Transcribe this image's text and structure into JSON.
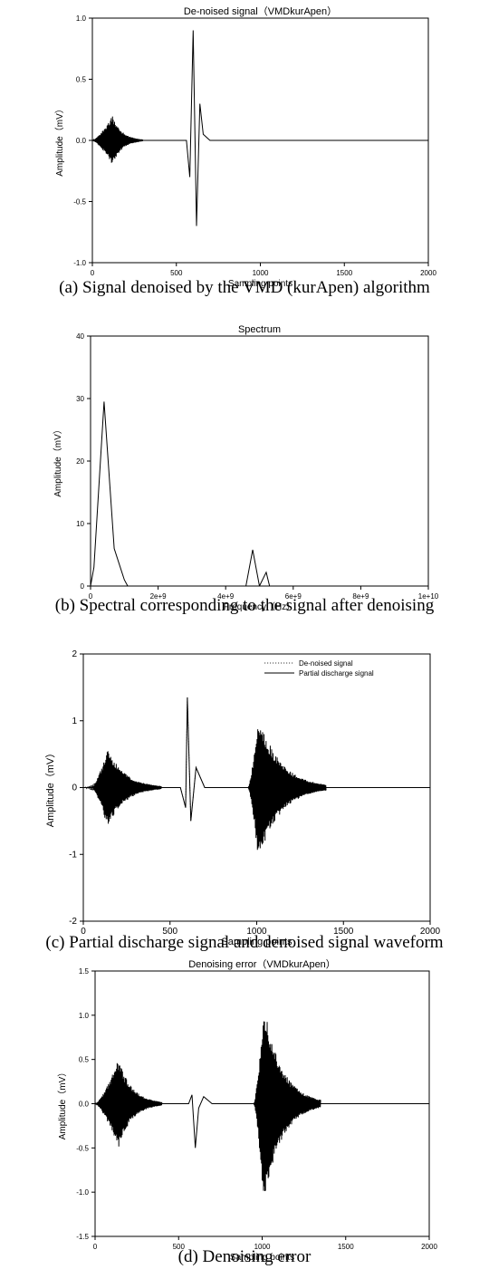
{
  "chart_data": [
    {
      "type": "line",
      "title": "De-noised signal（VMDkurApen）",
      "xlabel": "Sampling points",
      "ylabel": "Amplitude（mV）",
      "xlim": [
        0,
        2000
      ],
      "ylim": [
        -1.0,
        1.0
      ],
      "xticks": [
        "0",
        "500",
        "1000",
        "1500",
        "2000"
      ],
      "yticks": [
        "-1.0",
        "-0.5",
        "0.0",
        "0.5",
        "1.0"
      ],
      "grid": false,
      "series": [
        {
          "style": "solid",
          "x": [
            0,
            300,
            560,
            580,
            600,
            620,
            640,
            660,
            700,
            2000
          ],
          "y": [
            0.0,
            0.0,
            0.0,
            -0.3,
            0.9,
            -0.7,
            0.3,
            0.05,
            0.0,
            0.0
          ],
          "bursts": [
            {
              "x_start": 0,
              "x_end": 300,
              "peak": 0.2,
              "center": 120
            }
          ]
        }
      ]
    },
    {
      "type": "line",
      "title": "Spectrum",
      "xlabel": "Frequency（Hz）",
      "ylabel": "Amplitude（mV）",
      "xlim": [
        0,
        10000000000
      ],
      "ylim": [
        0,
        40
      ],
      "xticks": [
        "0",
        "2e+9",
        "4e+9",
        "6e+9",
        "8e+9",
        "1e+10"
      ],
      "yticks": [
        "0",
        "10",
        "20",
        "30",
        "40"
      ],
      "grid": false,
      "series": [
        {
          "style": "solid",
          "x": [
            0,
            100000000,
            400000000,
            700000000,
            1000000000,
            1100000000,
            4600000000,
            4800000000,
            5000000000,
            5200000000,
            5300000000,
            5400000000,
            10000000000
          ],
          "y": [
            0,
            3,
            29.5,
            6,
            1,
            0,
            0,
            5.8,
            0,
            2.2,
            0,
            0,
            0
          ]
        }
      ]
    },
    {
      "type": "line",
      "title": "",
      "xlabel": "Sampling points",
      "ylabel": "Amplitude（mV）",
      "xlim": [
        0,
        2000
      ],
      "ylim": [
        -2,
        2
      ],
      "xticks": [
        "0",
        "500",
        "1000",
        "1500",
        "2000"
      ],
      "yticks": [
        "-2",
        "-1",
        "0",
        "1",
        "2"
      ],
      "grid": false,
      "legend": "top-right",
      "series": [
        {
          "name": "De-noised signal",
          "style": "dotted",
          "x": [
            0,
            300,
            560,
            590,
            600,
            620,
            650,
            700,
            2000
          ],
          "y": [
            0,
            0,
            0,
            -0.3,
            1.35,
            -0.5,
            0.3,
            0,
            0
          ],
          "bursts": [
            {
              "x_start": 0,
              "x_end": 300,
              "peak": 0.15,
              "center": 120
            }
          ]
        },
        {
          "name": "Partial discharge signal",
          "style": "solid",
          "x": [
            0,
            560,
            590,
            600,
            620,
            650,
            700,
            2000
          ],
          "y": [
            0,
            0,
            -0.3,
            1.35,
            -0.5,
            0.3,
            0,
            0
          ],
          "bursts": [
            {
              "x_start": 50,
              "x_end": 450,
              "peak": 0.6,
              "center": 140
            },
            {
              "x_start": 950,
              "x_end": 1400,
              "peak": 1.1,
              "center": 1010
            }
          ]
        }
      ]
    },
    {
      "type": "line",
      "title": "Denoising error（VMDkurApen）",
      "xlabel": "Sampling points",
      "ylabel": "Amplitude（mV）",
      "xlim": [
        0,
        2000
      ],
      "ylim": [
        -1.5,
        1.5
      ],
      "xticks": [
        "0",
        "500",
        "1000",
        "1500",
        "2000"
      ],
      "yticks": [
        "-1.5",
        "-1.0",
        "-0.5",
        "0.0",
        "0.5",
        "1.0",
        "1.5"
      ],
      "grid": false,
      "series": [
        {
          "style": "solid",
          "x": [
            0,
            560,
            580,
            600,
            620,
            650,
            700,
            2000
          ],
          "y": [
            0,
            0,
            0.1,
            -0.5,
            -0.05,
            0.08,
            0,
            0
          ],
          "bursts": [
            {
              "x_start": 0,
              "x_end": 400,
              "peak": 0.5,
              "center": 140
            },
            {
              "x_start": 950,
              "x_end": 1350,
              "peak": 1.12,
              "center": 1010
            }
          ]
        }
      ]
    }
  ],
  "captions": {
    "a": "(a) Signal denoised by the VMD (kurApen) algorithm",
    "b": "(b) Spectral corresponding to the signal after denoising",
    "c": "(c) Partial discharge signal and denoised signal waveform",
    "d": "(d) Denoising error"
  },
  "colors": {
    "line": "#000000",
    "background": "#ffffff"
  }
}
